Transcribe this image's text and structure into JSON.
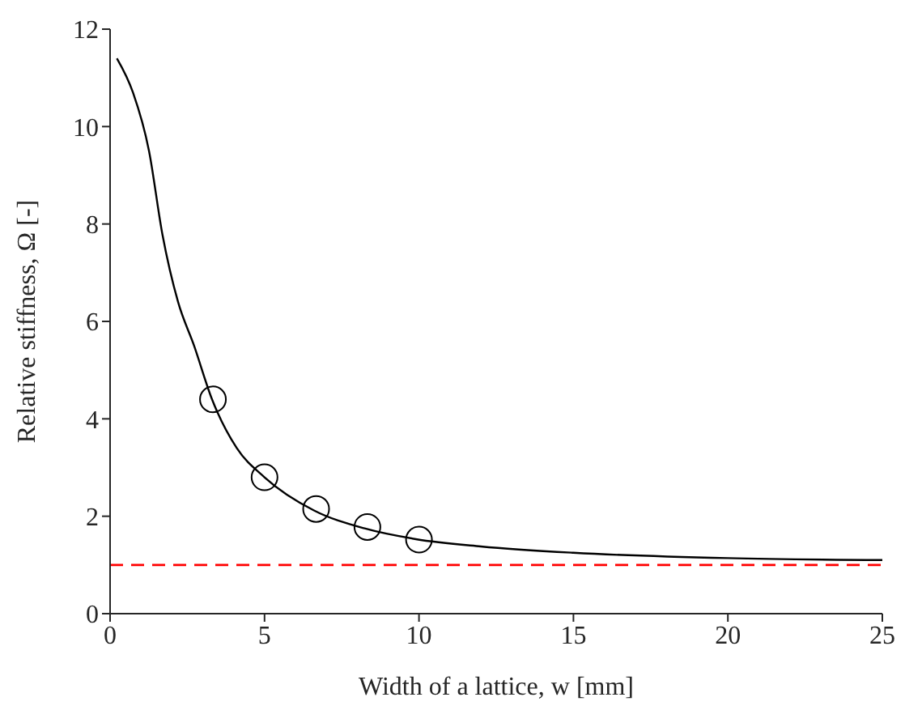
{
  "chart_data": {
    "type": "line",
    "xlabel": "Width of a lattice, w [mm]",
    "ylabel": "Relative stiffness, Ω [-]",
    "xlim": [
      0,
      25
    ],
    "ylim": [
      0,
      12
    ],
    "xticks": [
      0,
      5,
      10,
      15,
      20,
      25
    ],
    "yticks": [
      0,
      2,
      4,
      6,
      8,
      10,
      12
    ],
    "grid": false,
    "legend": false,
    "series": [
      {
        "type": "line",
        "color": "#000000",
        "marker": "none",
        "line_style": "solid",
        "x": [
          0.22,
          0.74,
          1.26,
          1.69,
          2.2,
          2.72,
          3.3,
          4.1,
          5,
          6.6,
          8.24,
          9.9,
          12,
          15,
          20,
          25
        ],
        "values": [
          11.4,
          10.7,
          9.5,
          7.8,
          6.4,
          5.5,
          4.4,
          3.4,
          2.8,
          2.12,
          1.75,
          1.53,
          1.38,
          1.25,
          1.14,
          1.1
        ]
      },
      {
        "type": "scatter",
        "color": "#000000",
        "marker": "circle",
        "x": [
          3.33,
          5,
          6.67,
          8.33,
          10
        ],
        "values": [
          4.4,
          2.8,
          2.15,
          1.78,
          1.52
        ]
      }
    ],
    "ref_lines": [
      {
        "axis": "y",
        "value": 1,
        "color": "#ff0000",
        "line_style": "dashed"
      }
    ]
  }
}
